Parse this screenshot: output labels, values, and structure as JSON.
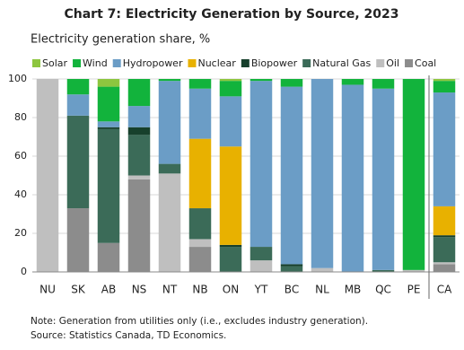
{
  "chart_data": {
    "type": "stacked_bar",
    "title": "Chart 7: Electricity Generation by Source, 2023",
    "subtitle": "Electricity generation share, %",
    "categories": [
      "NU",
      "SK",
      "AB",
      "NS",
      "NT",
      "NB",
      "ON",
      "YT",
      "BC",
      "NL",
      "MB",
      "QC",
      "PE",
      "CA"
    ],
    "series": [
      {
        "name": "Coal",
        "color": "#8c8c8c",
        "values": [
          0,
          33,
          15,
          48,
          0,
          13,
          0,
          0,
          0,
          0,
          0,
          0,
          0,
          4
        ]
      },
      {
        "name": "Oil",
        "color": "#bfbfbf",
        "values": [
          100,
          0,
          0,
          2,
          51,
          4,
          0,
          6,
          0,
          2,
          0,
          0,
          1,
          1
        ]
      },
      {
        "name": "Natural Gas",
        "color": "#3b6b58",
        "values": [
          0,
          48,
          59,
          21,
          5,
          16,
          13,
          7,
          3,
          0,
          0,
          1,
          0,
          13
        ]
      },
      {
        "name": "Biopower",
        "color": "#17402c",
        "values": [
          0,
          0,
          1,
          4,
          0,
          0,
          1,
          0,
          1,
          0,
          0,
          0,
          0,
          1
        ]
      },
      {
        "name": "Nuclear",
        "color": "#e8b100",
        "values": [
          0,
          0,
          0,
          0,
          0,
          36,
          51,
          0,
          0,
          0,
          0,
          0,
          0,
          15
        ]
      },
      {
        "name": "Hydropower",
        "color": "#6b9dc6",
        "values": [
          0,
          11,
          3,
          11,
          43,
          26,
          26,
          86,
          92,
          98,
          97,
          94,
          0,
          59
        ]
      },
      {
        "name": "Wind",
        "color": "#12b33c",
        "values": [
          0,
          8,
          18,
          14,
          1,
          5,
          8,
          1,
          4,
          0,
          3,
          5,
          99,
          6
        ]
      },
      {
        "name": "Solar",
        "color": "#8dc63f",
        "values": [
          0,
          0,
          4,
          0,
          0,
          0,
          1,
          0,
          0,
          0,
          0,
          0,
          0,
          1
        ]
      }
    ],
    "ylim": [
      0,
      100
    ],
    "yticks": [
      0,
      20,
      40,
      60,
      80,
      100
    ],
    "grid": true,
    "notes": [
      "Note: Generation from utilities only (i.e., excludes industry generation).",
      "Source: Statistics Canada, TD Economics."
    ]
  }
}
